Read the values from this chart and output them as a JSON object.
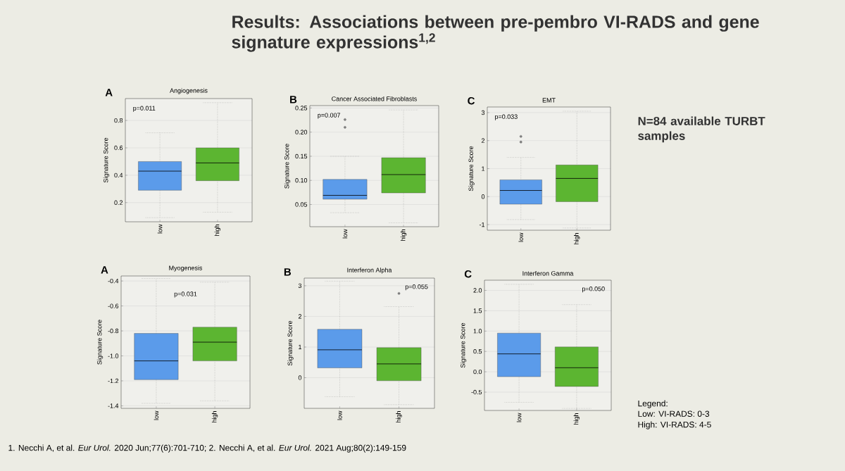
{
  "chart_data": [
    {
      "type": "box",
      "title": "Angiogenesis",
      "ylabel": "Signature Score",
      "categories": [
        "low",
        "high"
      ],
      "colors": [
        "#5b9bea",
        "#5cb531"
      ],
      "ylim": [
        0.06,
        0.96
      ],
      "yticks": [
        0.2,
        0.4,
        0.6,
        0.8
      ],
      "grid": "y",
      "annotations": [
        "A",
        "p=0.011"
      ],
      "boxes": [
        {
          "low": 0.09,
          "q1": 0.29,
          "median": 0.43,
          "q3": 0.5,
          "high": 0.71
        },
        {
          "low": 0.13,
          "q1": 0.36,
          "median": 0.49,
          "q3": 0.6,
          "high": 0.93
        }
      ]
    },
    {
      "type": "box",
      "title": "Cancer Associated Fibroblasts",
      "ylabel": "Signature Score",
      "categories": [
        "low",
        "high"
      ],
      "colors": [
        "#5b9bea",
        "#5cb531"
      ],
      "ylim": [
        0.004,
        0.255
      ],
      "yticks": [
        {
          "value": 0.05,
          "label": "0.05"
        },
        {
          "value": 0.1,
          "label": "0.10"
        },
        {
          "value": 0.15,
          "label": "0.15"
        },
        {
          "value": 0.2,
          "label": "0.20"
        },
        {
          "value": 0.25,
          "label": "0.25"
        }
      ],
      "grid": "y",
      "annotations": [
        "B",
        "p=0.007"
      ],
      "boxes": [
        {
          "low": 0.033,
          "q1": 0.061,
          "median": 0.069,
          "q3": 0.102,
          "high": 0.15,
          "outliers": [
            0.21,
            0.226
          ]
        },
        {
          "low": 0.012,
          "q1": 0.074,
          "median": 0.112,
          "q3": 0.147,
          "high": 0.246
        }
      ]
    },
    {
      "type": "box",
      "title": "EMT",
      "ylabel": "Signature Score",
      "categories": [
        "low",
        "high"
      ],
      "colors": [
        "#5b9bea",
        "#5cb531"
      ],
      "ylim": [
        -1.2,
        3.2
      ],
      "yticks": [
        -1,
        0,
        1,
        2,
        3
      ],
      "grid": "y",
      "annotations": [
        "C",
        "p=0.033"
      ],
      "boxes": [
        {
          "low": -0.82,
          "q1": -0.27,
          "median": 0.22,
          "q3": 0.6,
          "high": 1.4,
          "outliers": [
            1.95,
            2.15
          ]
        },
        {
          "low": -1.12,
          "q1": -0.18,
          "median": 0.65,
          "q3": 1.13,
          "high": 3.05
        }
      ]
    },
    {
      "type": "box",
      "title": "Myogenesis",
      "ylabel": "Signature Score",
      "categories": [
        "low",
        "high"
      ],
      "colors": [
        "#5b9bea",
        "#5cb531"
      ],
      "ylim": [
        -1.42,
        -0.36
      ],
      "yticks": [
        -1.4,
        -1.2,
        {
          "value": -1.0,
          "label": "-1.0"
        },
        -0.8,
        -0.6,
        -0.4
      ],
      "grid": "y",
      "annotations": [
        "A",
        "p=0.031"
      ],
      "boxes": [
        {
          "low": -1.38,
          "q1": -1.19,
          "median": -1.04,
          "q3": -0.82,
          "high": -0.38
        },
        {
          "low": -1.36,
          "q1": -1.04,
          "median": -0.89,
          "q3": -0.77,
          "high": -0.41
        }
      ]
    },
    {
      "type": "box",
      "title": "Interferon Alpha",
      "ylabel": "Signature Score",
      "categories": [
        "low",
        "high"
      ],
      "colors": [
        "#5b9bea",
        "#5cb531"
      ],
      "ylim": [
        -1.0,
        3.25
      ],
      "yticks": [
        0,
        1,
        2,
        3
      ],
      "grid": "y",
      "annotations": [
        "B",
        "p=0.055"
      ],
      "boxes": [
        {
          "low": -0.62,
          "q1": 0.32,
          "median": 0.91,
          "q3": 1.58,
          "high": 3.15
        },
        {
          "low": -0.88,
          "q1": -0.1,
          "median": 0.45,
          "q3": 0.98,
          "high": 2.32,
          "outliers": [
            2.75
          ]
        }
      ]
    },
    {
      "type": "box",
      "title": "Interferon Gamma",
      "ylabel": "Signature Score",
      "categories": [
        "low",
        "high"
      ],
      "colors": [
        "#5b9bea",
        "#5cb531"
      ],
      "ylim": [
        -0.95,
        2.25
      ],
      "yticks": [
        -0.5,
        {
          "value": 0,
          "label": "0.0"
        },
        0.5,
        {
          "value": 1,
          "label": "1.0"
        },
        1.5,
        {
          "value": 2,
          "label": "2.0"
        }
      ],
      "grid": "y",
      "annotations": [
        "C",
        "p=0.050"
      ],
      "boxes": [
        {
          "low": -0.75,
          "q1": -0.12,
          "median": 0.44,
          "q3": 0.95,
          "high": 2.15
        },
        {
          "low": -0.9,
          "q1": -0.36,
          "median": 0.1,
          "q3": 0.61,
          "high": 1.65
        }
      ]
    },
    {
      "type": "other",
      "title": "Results: Associations between pre-pembro VI-RADS and gene signature expressions$^{1,2}$",
      "annotations": [
        "N=84 available TURBT samples",
        "Legend:",
        "Low: VI-RADS: 0-3",
        "High: VI-RADS: 4-5",
        "1. Necchi A, et al. *Eur Urol.* 2020 Jun;77(6):701-710; 2. Necchi A, et al. *Eur Urol.* 2021 Aug;80(2):149-159"
      ]
    }
  ]
}
